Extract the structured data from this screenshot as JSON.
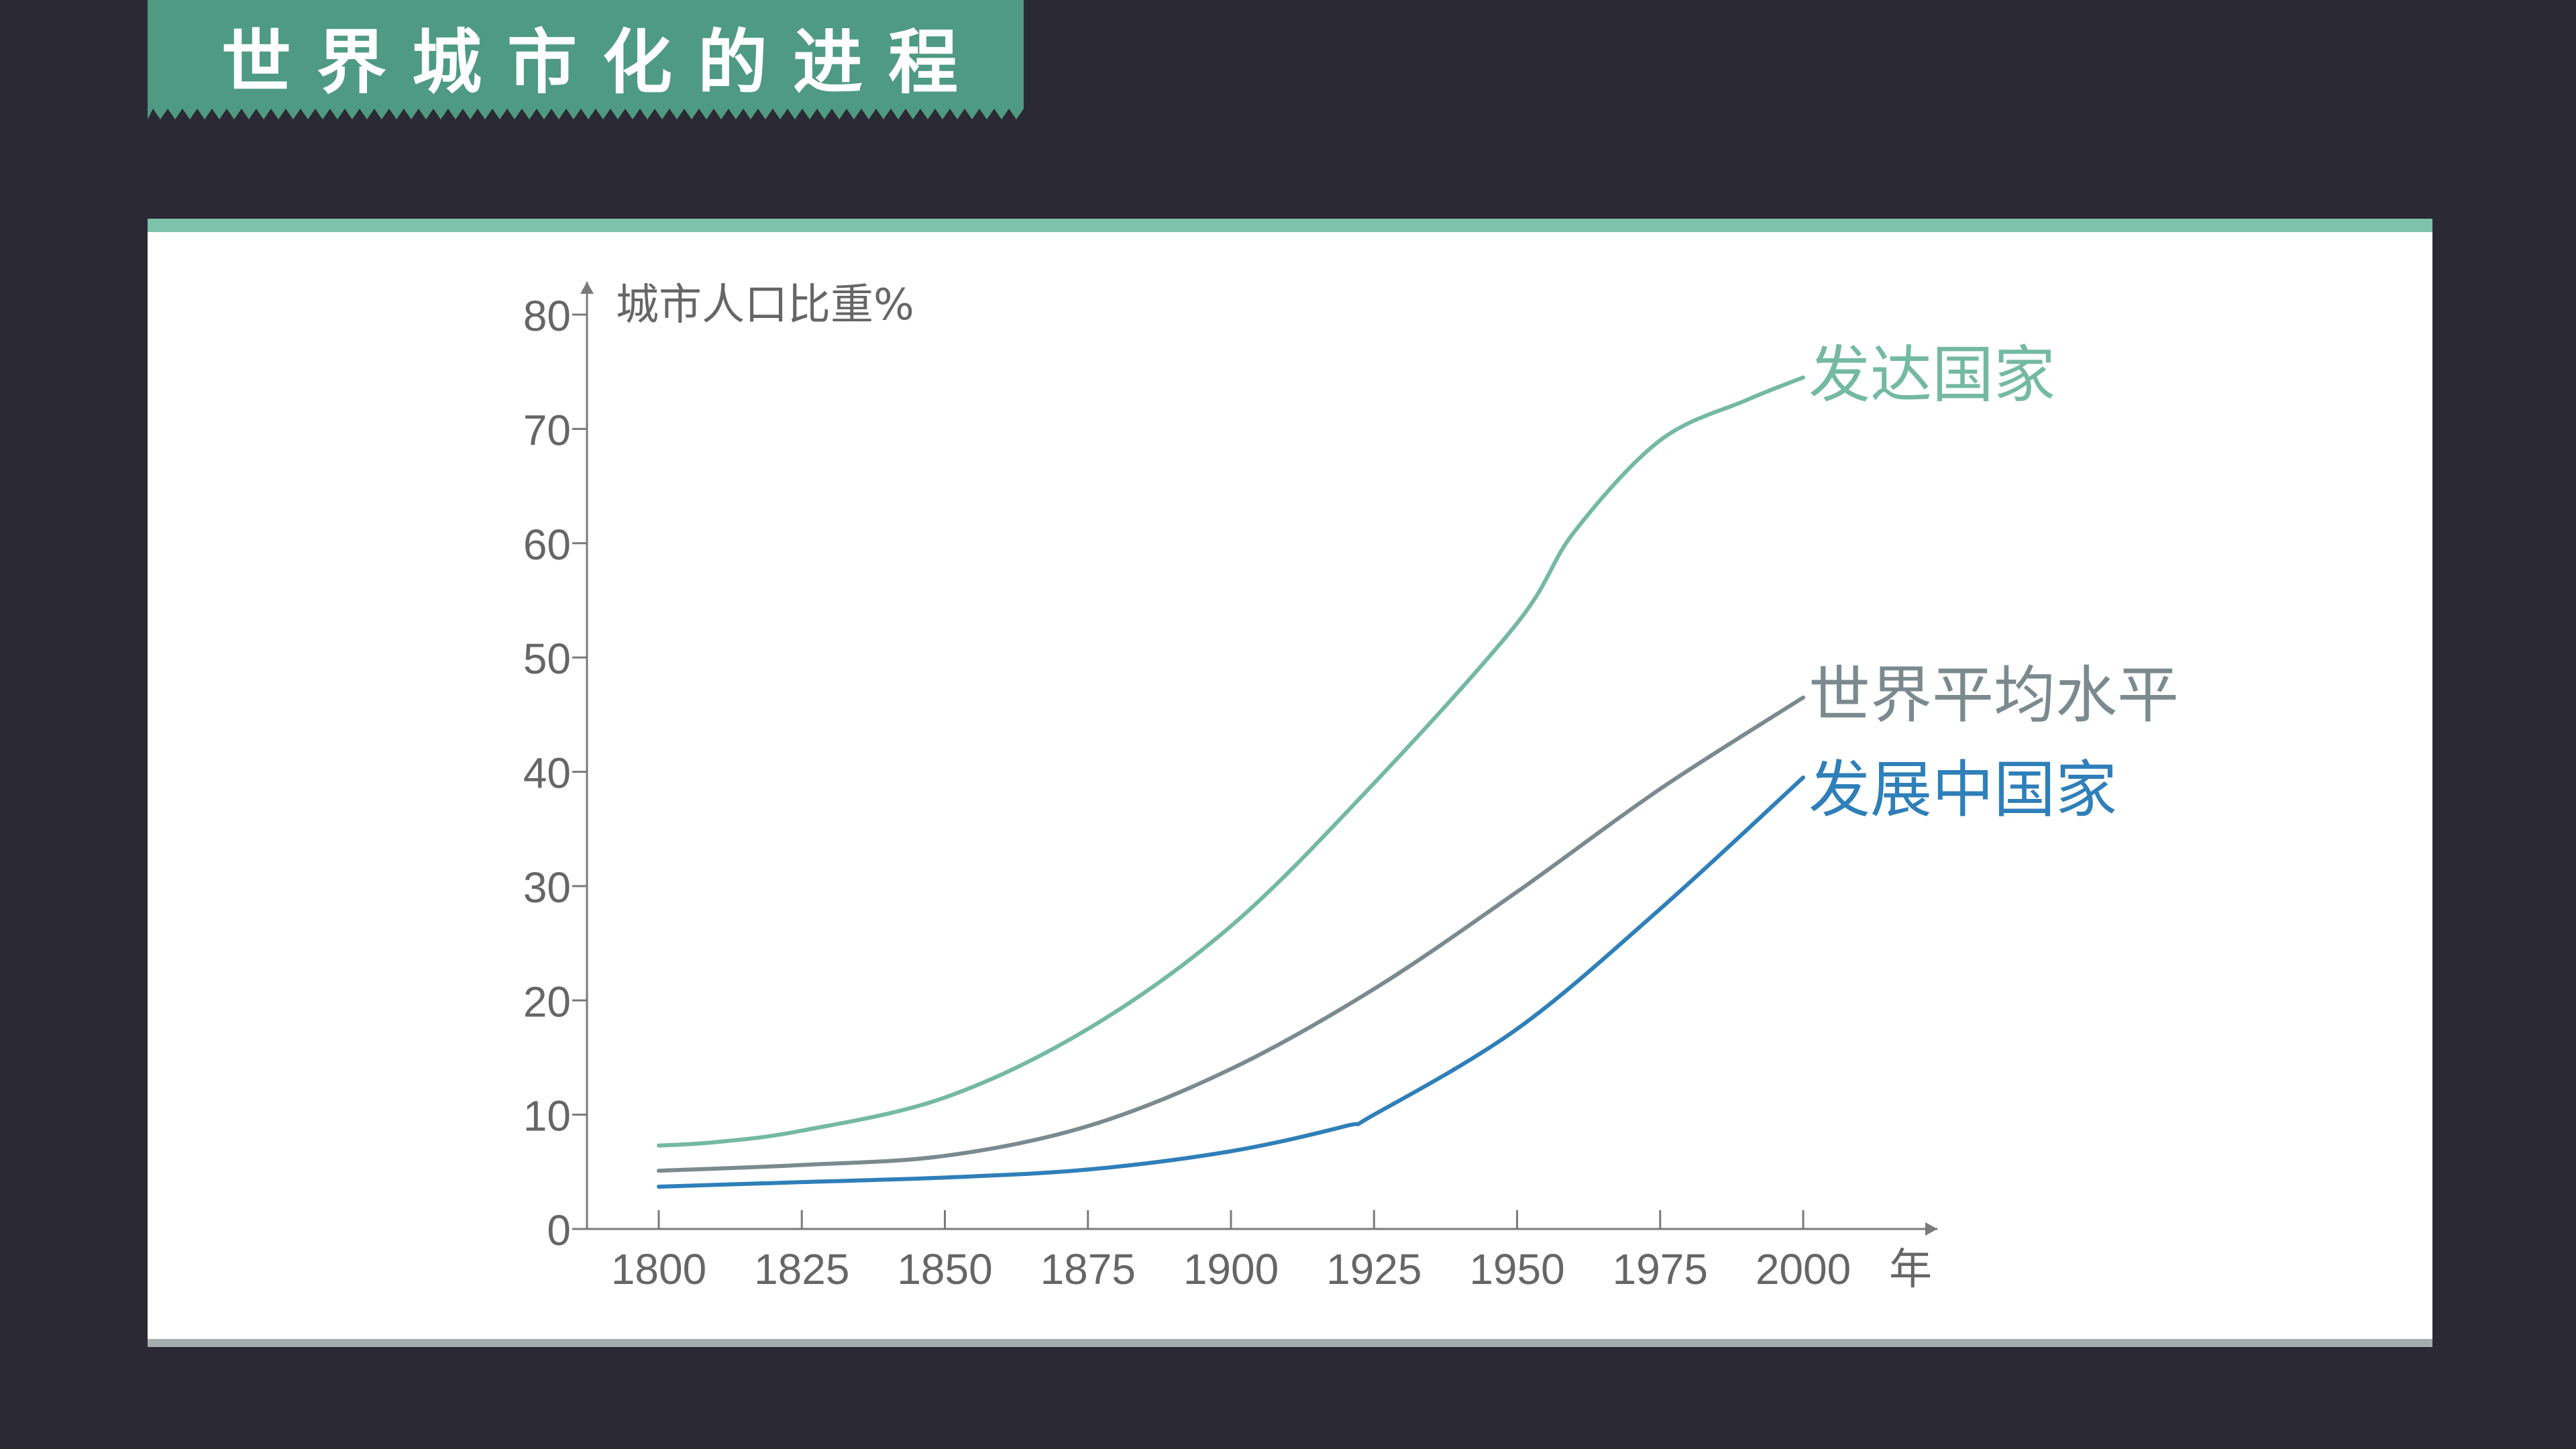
{
  "header": {
    "title": "世界城市化的进程"
  },
  "colors": {
    "background": "#2a2934",
    "banner": "#4f9a83",
    "panel_top_border": "#7dc2aa",
    "axis": "#7a7a7a"
  },
  "chart_data": {
    "type": "line",
    "ylabel": "城市人口比重%",
    "xlabel": "年",
    "xlim": [
      1800,
      2000
    ],
    "ylim": [
      0,
      80
    ],
    "x_ticks": [
      1800,
      1825,
      1850,
      1875,
      1900,
      1925,
      1950,
      1975,
      2000
    ],
    "y_ticks": [
      0,
      10,
      20,
      30,
      40,
      50,
      60,
      70,
      80
    ],
    "grid": false,
    "series": [
      {
        "name": "发达国家",
        "color": "#74b9a1",
        "x": [
          1800,
          1810,
          1825,
          1850,
          1875,
          1900,
          1925,
          1950,
          1960,
          1975,
          1990,
          2000
        ],
        "y": [
          7.3,
          7.6,
          8.6,
          11.5,
          17.5,
          26.5,
          39,
          53,
          61,
          69,
          72.5,
          74.5
        ]
      },
      {
        "name": "世界平均水平",
        "color": "#7b8a8e",
        "x": [
          1800,
          1825,
          1850,
          1875,
          1900,
          1925,
          1950,
          1975,
          2000
        ],
        "y": [
          5.1,
          5.6,
          6.4,
          9,
          14,
          21,
          29.5,
          38.5,
          46.5
        ]
      },
      {
        "name": "发展中国家",
        "color": "#2f7fb9",
        "x": [
          1800,
          1825,
          1850,
          1875,
          1900,
          1920,
          1925,
          1950,
          1975,
          2000
        ],
        "y": [
          3.7,
          4.1,
          4.5,
          5.2,
          6.8,
          9,
          10,
          17.5,
          28,
          39.5
        ]
      }
    ]
  }
}
